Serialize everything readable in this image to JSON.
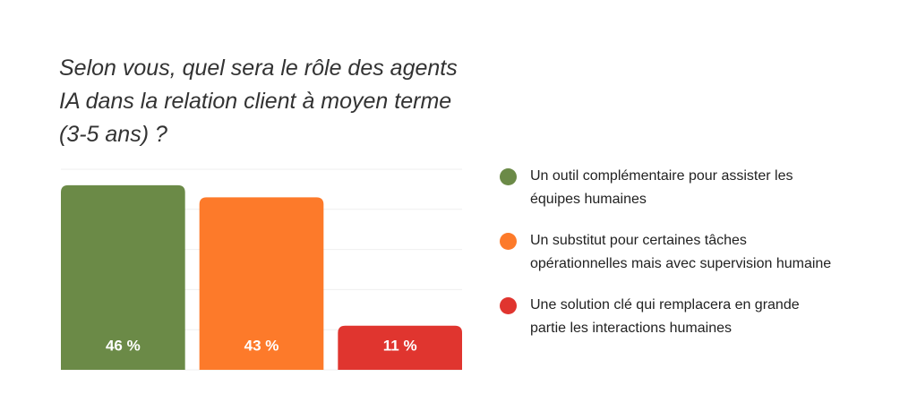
{
  "chart_data": {
    "type": "bar",
    "title": "Selon vous, quel sera le rôle des agents IA dans la relation client à moyen terme (3-5 ans) ?",
    "categories": [
      "Un outil complémentaire pour assister les équipes humaines",
      "Un substitut pour certaines tâches opérationnelles mais avec supervision humaine",
      "Une solution clé qui remplacera en grande partie les interactions humaines"
    ],
    "values": [
      46,
      43,
      11
    ],
    "value_labels": [
      "46 %",
      "43 %",
      "11 %"
    ],
    "colors": [
      "#6b8a47",
      "#fd7a2a",
      "#e0352f"
    ],
    "ylim": [
      0,
      50
    ],
    "yticks": [
      0,
      10,
      20,
      30,
      40,
      50
    ],
    "grid": true,
    "legend": "right"
  }
}
